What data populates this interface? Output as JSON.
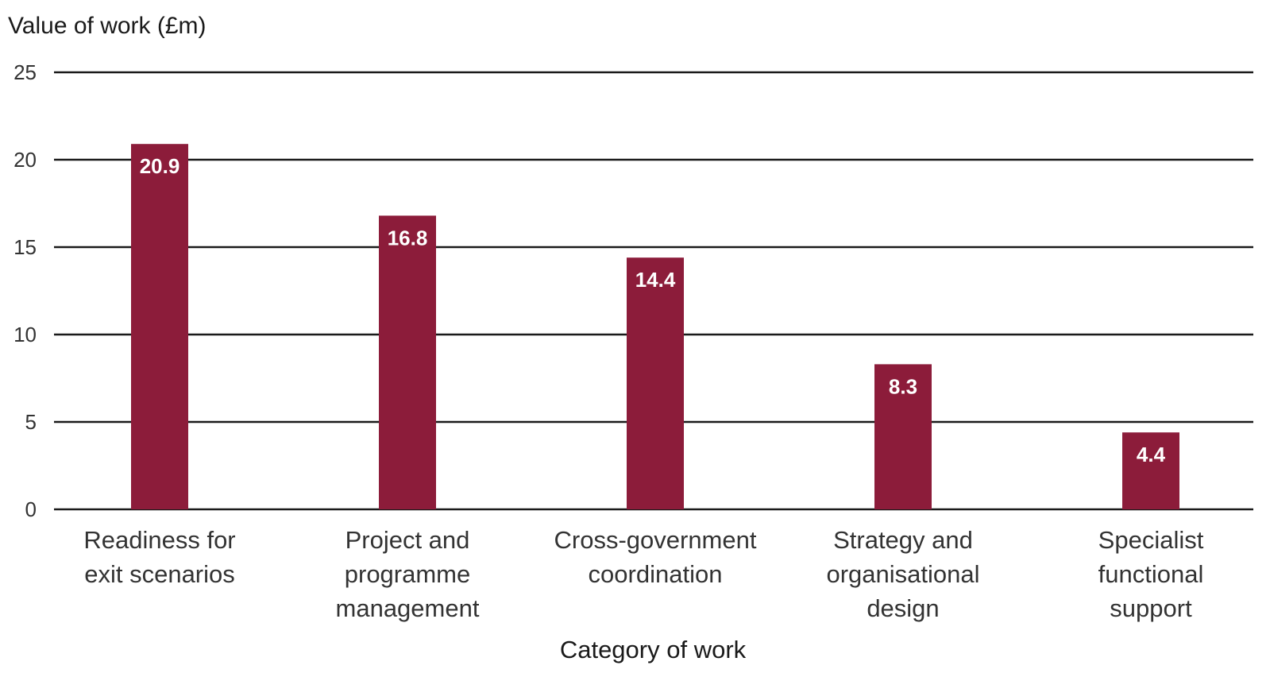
{
  "chart_data": {
    "type": "bar",
    "title": "",
    "ylabel": "Value of work (£m)",
    "xlabel": "Category of work",
    "categories": [
      [
        "Readiness for",
        "exit scenarios"
      ],
      [
        "Project and",
        "programme",
        "management"
      ],
      [
        "Cross-government",
        "coordination"
      ],
      [
        "Strategy and",
        "organisational",
        "design"
      ],
      [
        "Specialist",
        "functional",
        "support"
      ]
    ],
    "values": [
      20.9,
      16.8,
      14.4,
      8.3,
      4.4
    ],
    "value_labels": [
      "20.9",
      "16.8",
      "14.4",
      "8.3",
      "4.4"
    ],
    "ylim": [
      0,
      25
    ],
    "yticks": [
      0,
      5,
      10,
      15,
      20,
      25
    ],
    "grid": true,
    "legend": "none",
    "bar_color": "#8c1c3a"
  }
}
